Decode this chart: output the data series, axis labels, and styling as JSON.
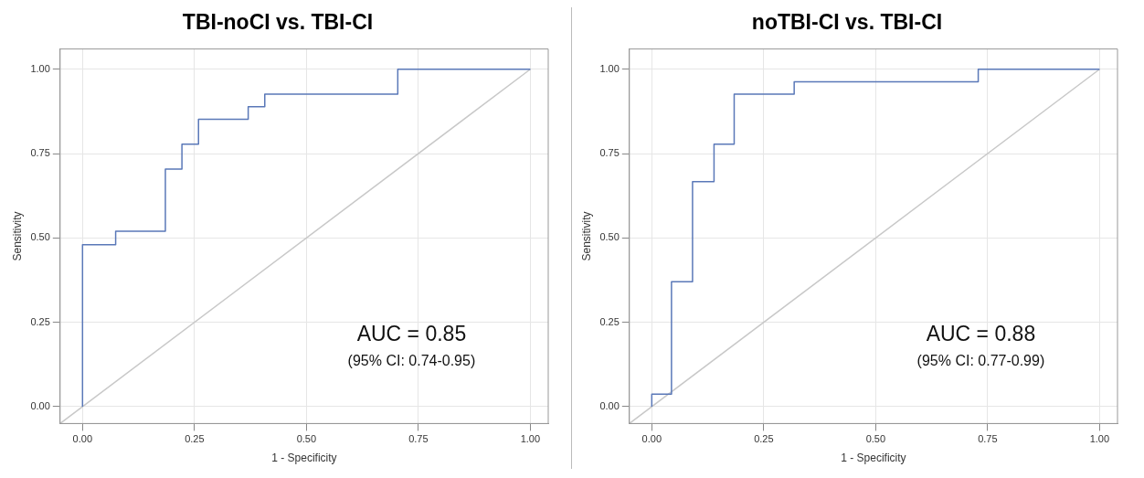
{
  "chart_data": [
    {
      "type": "line",
      "title": "TBI-noCI vs. TBI-CI",
      "xlabel": "1 - Specificity",
      "ylabel": "Sensitivity",
      "annotations": [
        "AUC = 0.85",
        "(95% CI: 0.74-0.95)"
      ],
      "series": [
        {
          "color": "#5a78b8",
          "x": [
            0,
            0,
            0.074,
            0.074,
            0.185,
            0.185,
            0.222,
            0.222,
            0.259,
            0.259,
            0.37,
            0.37,
            0.407,
            0.407,
            0.704,
            0.704,
            1
          ],
          "values": [
            0,
            0.48,
            0.48,
            0.52,
            0.52,
            0.704,
            0.704,
            0.778,
            0.778,
            0.852,
            0.852,
            0.889,
            0.889,
            0.926,
            0.926,
            1,
            1
          ]
        },
        {
          "color": "#c8c8c8",
          "x": [
            -0.05,
            1
          ],
          "values": [
            -0.05,
            1
          ]
        }
      ],
      "xlim": [
        -0.05,
        1.04
      ],
      "ylim": [
        -0.05,
        1.06
      ],
      "xticks": [
        {
          "value": 0,
          "label": "0.00"
        },
        {
          "value": 0.25,
          "label": "0.25"
        },
        {
          "value": 0.5,
          "label": "0.50"
        },
        {
          "value": 0.75,
          "label": "0.75"
        },
        {
          "value": 1,
          "label": "1.00"
        }
      ],
      "yticks": [
        {
          "value": 0,
          "label": "0.00"
        },
        {
          "value": 0.25,
          "label": "0.25"
        },
        {
          "value": 0.5,
          "label": "0.50"
        },
        {
          "value": 0.75,
          "label": "0.75"
        },
        {
          "value": 1,
          "label": "1.00"
        }
      ],
      "grid": true,
      "legend": false,
      "marker": "none",
      "line_style": "solid"
    },
    {
      "type": "line",
      "title": "noTBI-CI vs. TBI-CI",
      "xlabel": "1 - Specificity",
      "ylabel": "Sensitivity",
      "annotations": [
        "AUC = 0.88",
        "(95% CI: 0.77-0.99)"
      ],
      "series": [
        {
          "color": "#5a78b8",
          "x": [
            0,
            0,
            0.044,
            0.044,
            0.091,
            0.091,
            0.139,
            0.139,
            0.184,
            0.184,
            0.318,
            0.318,
            0.729,
            0.729,
            1
          ],
          "values": [
            0,
            0.037,
            0.037,
            0.37,
            0.37,
            0.667,
            0.667,
            0.778,
            0.778,
            0.926,
            0.926,
            0.963,
            0.963,
            1,
            1
          ]
        },
        {
          "color": "#c8c8c8",
          "x": [
            -0.05,
            1
          ],
          "values": [
            -0.05,
            1
          ]
        }
      ],
      "xlim": [
        -0.05,
        1.04
      ],
      "ylim": [
        -0.05,
        1.06
      ],
      "xticks": [
        {
          "value": 0,
          "label": "0.00"
        },
        {
          "value": 0.25,
          "label": "0.25"
        },
        {
          "value": 0.5,
          "label": "0.50"
        },
        {
          "value": 0.75,
          "label": "0.75"
        },
        {
          "value": 1,
          "label": "1.00"
        }
      ],
      "yticks": [
        {
          "value": 0,
          "label": "0.00"
        },
        {
          "value": 0.25,
          "label": "0.25"
        },
        {
          "value": 0.5,
          "label": "0.50"
        },
        {
          "value": 0.75,
          "label": "0.75"
        },
        {
          "value": 1,
          "label": "1.00"
        }
      ],
      "grid": true,
      "legend": false,
      "marker": "none",
      "line_style": "solid"
    }
  ]
}
